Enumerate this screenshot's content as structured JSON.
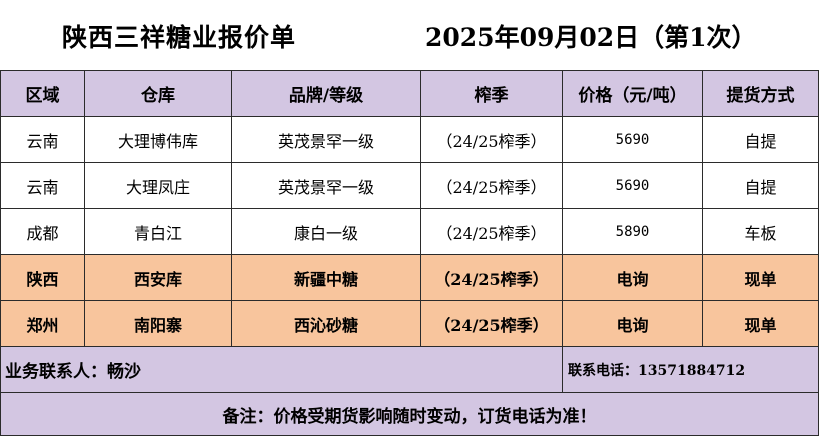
{
  "header": {
    "title": "陕西三祥糖业报价单",
    "date": "2025年09月02日（第1次）"
  },
  "table": {
    "columns": [
      "区域",
      "仓库",
      "品牌/等级",
      "榨季",
      "价格（元/吨）",
      "提货方式"
    ],
    "rows": [
      {
        "region": "云南",
        "warehouse": "大理博伟库",
        "brand": "英茂景罕一级",
        "season": "（24/25榨季）",
        "price": "5690",
        "pickup": "自提"
      },
      {
        "region": "云南",
        "warehouse": "大理凤庄",
        "brand": "英茂景罕一级",
        "season": "（24/25榨季）",
        "price": "5690",
        "pickup": "自提"
      },
      {
        "region": "成都",
        "warehouse": "青白江",
        "brand": "康白一级",
        "season": "（24/25榨季）",
        "price": "5890",
        "pickup": "车板"
      },
      {
        "region": "陕西",
        "warehouse": "西安库",
        "brand": "新疆中糖",
        "season": "（24/25榨季）",
        "price": "电询",
        "pickup": "现单"
      },
      {
        "region": "郑州",
        "warehouse": "南阳寨",
        "brand": "西沁砂糖",
        "season": "（24/25榨季）",
        "price": "电询",
        "pickup": "现单"
      }
    ]
  },
  "contact": {
    "person": "业务联系人：畅沙",
    "phone": "联系电话：13571884712"
  },
  "note": "备注：价格受期货影响随时变动，订货电话为准！",
  "colors": {
    "header_bg": "#d3c6e2",
    "highlight_row_bg": "#f8c59d",
    "border": "#2b2b2b"
  }
}
